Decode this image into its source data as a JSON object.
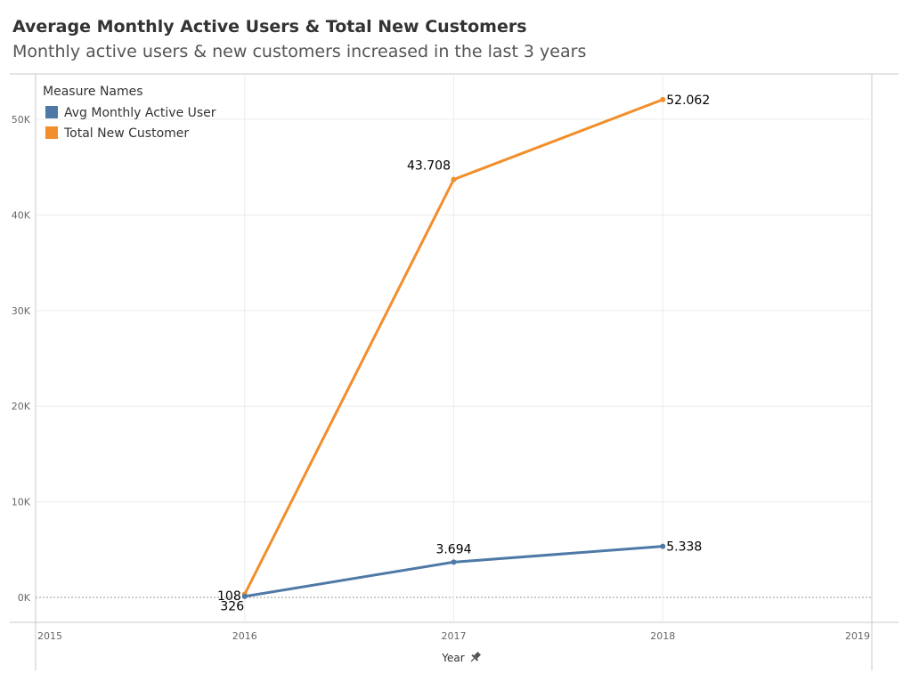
{
  "header": {
    "title": "Average Monthly Active Users & Total New Customers",
    "subtitle": "Monthly active users & new customers increased in the last 3 years"
  },
  "legend": {
    "title": "Measure Names",
    "placement": "top-left"
  },
  "chart_data": {
    "type": "line",
    "xlabel": "Year",
    "ylabel": "",
    "x": [
      2016,
      2017,
      2018
    ],
    "xlim": [
      2015,
      2019
    ],
    "ylim": [
      0,
      55000
    ],
    "x_ticks": [
      "2015",
      "2016",
      "2017",
      "2018",
      "2019"
    ],
    "y_ticks": [
      {
        "value": 0,
        "label": "0K"
      },
      {
        "value": 10000,
        "label": "10K"
      },
      {
        "value": 20000,
        "label": "20K"
      },
      {
        "value": 30000,
        "label": "30K"
      },
      {
        "value": 40000,
        "label": "40K"
      },
      {
        "value": 50000,
        "label": "50K"
      }
    ],
    "grid": true,
    "series": [
      {
        "name": "Avg Monthly Active User",
        "color": "#4e79a7",
        "values": [
          108,
          3694,
          5338
        ],
        "labels": [
          "108",
          "3.694",
          "5.338"
        ]
      },
      {
        "name": "Total New Customer",
        "color": "#f28e2b",
        "values": [
          326,
          43708,
          52062
        ],
        "labels": [
          "326",
          "43.708",
          "52.062"
        ]
      }
    ]
  }
}
